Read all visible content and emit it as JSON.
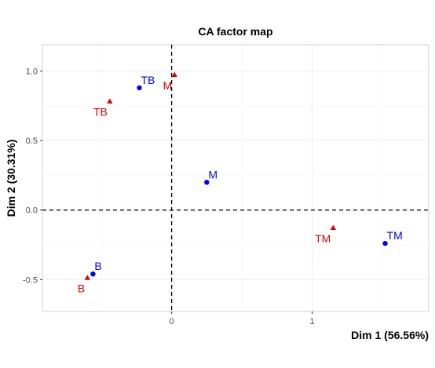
{
  "chart_data": {
    "type": "scatter",
    "title": "CA factor map",
    "xlabel": "Dim 1 (56.56%)",
    "ylabel": "Dim 2 (30.31%)",
    "xlim": [
      -0.92,
      1.83
    ],
    "ylim": [
      -0.73,
      1.19
    ],
    "x_ticks": [
      {
        "value": 0,
        "label": "0"
      },
      {
        "value": 1,
        "label": "1"
      }
    ],
    "y_ticks": [
      {
        "value": -0.5,
        "label": "-0.5"
      },
      {
        "value": 0.0,
        "label": "0.0"
      },
      {
        "value": 0.5,
        "label": "0.5"
      },
      {
        "value": 1.0,
        "label": "1.0"
      }
    ],
    "grid": true,
    "reference_lines": {
      "x": 0,
      "y": 0,
      "style": "dashed"
    },
    "series": [
      {
        "color": "#0000ee",
        "marker": "circle",
        "points": [
          {
            "label": "TB",
            "x": -0.23,
            "y": 0.88
          },
          {
            "label": "M",
            "x": 0.25,
            "y": 0.2
          },
          {
            "label": "B",
            "x": -0.56,
            "y": -0.46
          },
          {
            "label": "TM",
            "x": 1.52,
            "y": -0.24
          }
        ]
      },
      {
        "color": "#dd0000",
        "marker": "triangle",
        "points": [
          {
            "label": "M",
            "x": 0.02,
            "y": 0.97
          },
          {
            "label": "TB",
            "x": -0.44,
            "y": 0.78
          },
          {
            "label": "B",
            "x": -0.6,
            "y": -0.49
          },
          {
            "label": "TM",
            "x": 1.15,
            "y": -0.13
          }
        ]
      }
    ]
  }
}
